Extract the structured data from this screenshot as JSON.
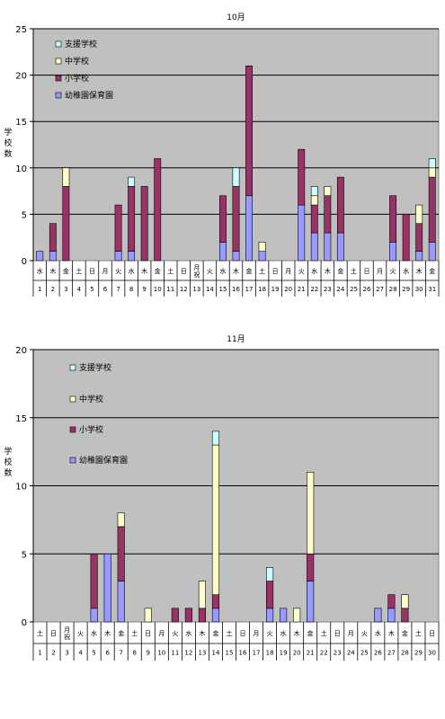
{
  "colors": {
    "plot_bg": "#c0c0c0",
    "grid": "#000000",
    "youchien": "#9999ff",
    "shougakkou": "#993366",
    "chuugakkou": "#ffffcc",
    "shien": "#ccffff"
  },
  "chart_data": [
    {
      "type": "bar",
      "stacked": true,
      "title": "10月",
      "ylabel": "学校数",
      "ylim": [
        0,
        25
      ],
      "yticks": [
        "0",
        "5",
        "10",
        "15",
        "20",
        "25"
      ],
      "legend_position": "top-left",
      "legend_order": [
        3,
        2,
        1,
        0
      ],
      "categories": [
        "1",
        "2",
        "3",
        "4",
        "5",
        "6",
        "7",
        "8",
        "9",
        "10",
        "11",
        "12",
        "13",
        "14",
        "15",
        "16",
        "17",
        "18",
        "19",
        "20",
        "21",
        "22",
        "23",
        "24",
        "25",
        "26",
        "27",
        "28",
        "29",
        "30",
        "31"
      ],
      "weekdays": [
        "水",
        "木",
        "金",
        "土",
        "日",
        "月",
        "火",
        "水",
        "木",
        "金",
        "土",
        "日",
        "月祝",
        "火",
        "水",
        "木",
        "金",
        "土",
        "日",
        "月",
        "火",
        "水",
        "木",
        "金",
        "土",
        "日",
        "月",
        "火",
        "水",
        "木",
        "金"
      ],
      "series": [
        {
          "name": "幼稚園保育園",
          "color": "#9999ff",
          "values": [
            1,
            1,
            0,
            0,
            0,
            0,
            1,
            1,
            0,
            0,
            0,
            0,
            0,
            0,
            2,
            1,
            7,
            1,
            0,
            0,
            6,
            3,
            3,
            3,
            0,
            0,
            0,
            2,
            0,
            1,
            2
          ]
        },
        {
          "name": "小学校",
          "color": "#993366",
          "values": [
            0,
            3,
            8,
            0,
            0,
            0,
            5,
            7,
            8,
            11,
            0,
            0,
            0,
            0,
            5,
            7,
            14,
            0,
            0,
            0,
            6,
            3,
            4,
            6,
            0,
            0,
            0,
            5,
            5,
            3,
            7
          ]
        },
        {
          "name": "中学校",
          "color": "#ffffcc",
          "values": [
            0,
            0,
            2,
            0,
            0,
            0,
            0,
            0,
            0,
            0,
            0,
            0,
            0,
            0,
            0,
            0,
            0,
            1,
            0,
            0,
            0,
            1,
            1,
            0,
            0,
            0,
            0,
            0,
            0,
            2,
            1
          ]
        },
        {
          "name": "支援学校",
          "color": "#ccffff",
          "values": [
            0,
            0,
            0,
            0,
            0,
            0,
            0,
            1,
            0,
            0,
            0,
            0,
            0,
            0,
            0,
            2,
            0,
            0,
            0,
            0,
            0,
            1,
            0,
            0,
            0,
            0,
            0,
            0,
            0,
            0,
            1
          ]
        }
      ]
    },
    {
      "type": "bar",
      "stacked": true,
      "title": "11月",
      "ylabel": "学校数",
      "ylim": [
        0,
        20
      ],
      "yticks": [
        "0",
        "5",
        "10",
        "15",
        "20"
      ],
      "legend_position": "top-left",
      "legend_order": [
        3,
        2,
        1,
        0
      ],
      "categories": [
        "1",
        "2",
        "3",
        "4",
        "5",
        "6",
        "7",
        "8",
        "9",
        "10",
        "11",
        "12",
        "13",
        "14",
        "15",
        "16",
        "17",
        "18",
        "19",
        "20",
        "21",
        "22",
        "23",
        "24",
        "25",
        "26",
        "27",
        "28",
        "29",
        "30"
      ],
      "weekdays": [
        "土",
        "日",
        "月祝",
        "火",
        "水",
        "木",
        "金",
        "土",
        "日",
        "月",
        "火",
        "水",
        "木",
        "金",
        "土",
        "日",
        "月",
        "火",
        "水",
        "木",
        "金",
        "土",
        "日",
        "月",
        "火",
        "水",
        "木",
        "金",
        "土",
        "日"
      ],
      "series": [
        {
          "name": "幼稚園保育園",
          "color": "#9999ff",
          "values": [
            0,
            0,
            0,
            0,
            1,
            5,
            3,
            0,
            0,
            0,
            0,
            0,
            0,
            1,
            0,
            0,
            0,
            1,
            1,
            0,
            3,
            0,
            0,
            0,
            0,
            1,
            1,
            0,
            0,
            0
          ]
        },
        {
          "name": "小学校",
          "color": "#993366",
          "values": [
            0,
            0,
            0,
            0,
            4,
            0,
            4,
            0,
            0,
            0,
            1,
            1,
            1,
            1,
            0,
            0,
            0,
            2,
            0,
            0,
            2,
            0,
            0,
            0,
            0,
            0,
            1,
            1,
            0,
            0
          ]
        },
        {
          "name": "中学校",
          "color": "#ffffcc",
          "values": [
            0,
            0,
            0,
            0,
            0,
            0,
            1,
            0,
            1,
            0,
            0,
            0,
            2,
            11,
            0,
            0,
            0,
            0,
            0,
            1,
            6,
            0,
            0,
            0,
            0,
            0,
            0,
            1,
            0,
            0
          ]
        },
        {
          "name": "支援学校",
          "color": "#ccffff",
          "values": [
            0,
            0,
            0,
            0,
            0,
            0,
            0,
            0,
            0,
            0,
            0,
            0,
            0,
            1,
            0,
            0,
            0,
            1,
            0,
            0,
            0,
            0,
            0,
            0,
            0,
            0,
            0,
            0,
            0,
            0
          ]
        }
      ]
    }
  ]
}
